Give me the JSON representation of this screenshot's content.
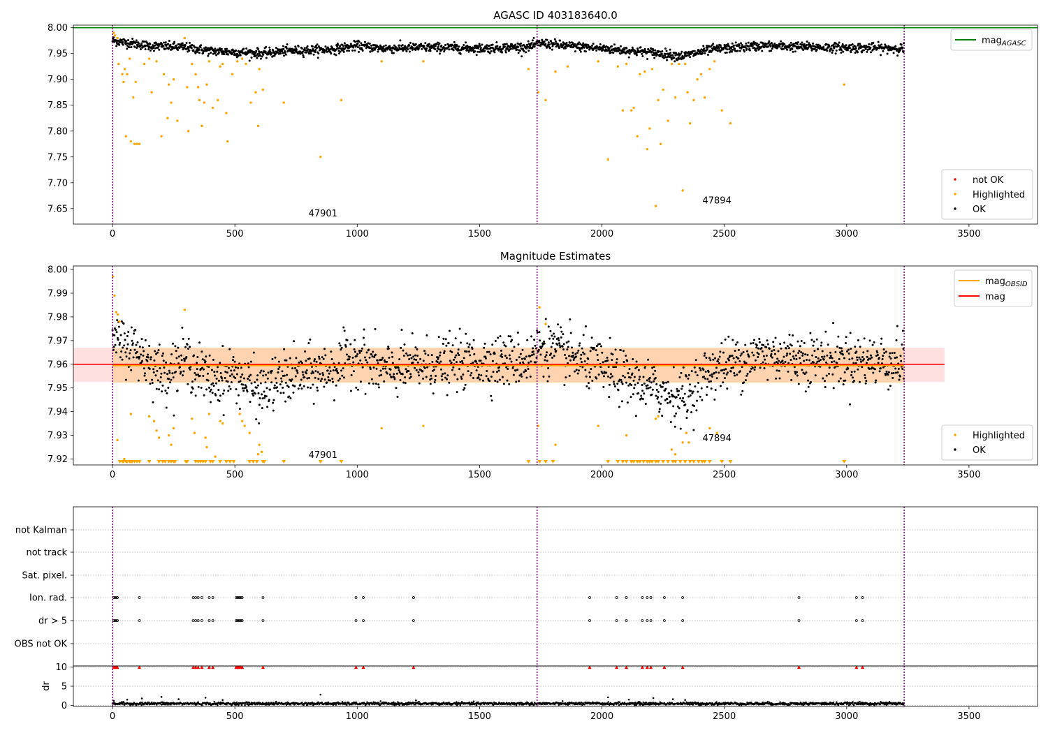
{
  "chart_data": [
    {
      "type": "scatter",
      "title": "AGASC ID 403183640.0",
      "xlim": [
        -160,
        3780
      ],
      "ylim": [
        7.62,
        8.005
      ],
      "x_ticks": [
        0,
        500,
        1000,
        1500,
        2000,
        2500,
        3000,
        3500
      ],
      "y_ticks": [
        7.65,
        7.7,
        7.75,
        7.8,
        7.85,
        7.9,
        7.95,
        8.0
      ],
      "reference_line": {
        "name": "mag",
        "subscript": "AGASC",
        "value": 8.0,
        "color": "#008000"
      },
      "obsid_boundaries": [
        0,
        1735,
        3235
      ],
      "annotations": [
        {
          "text": "47901",
          "x": 860,
          "y": 7.635
        },
        {
          "text": "47894",
          "x": 2470,
          "y": 7.66
        }
      ],
      "legend_lines": [
        {
          "name": "mag",
          "subscript": "AGASC",
          "color": "#008000"
        }
      ],
      "legend_points": [
        {
          "name": "not OK",
          "color": "#ff0000"
        },
        {
          "name": "Highlighted",
          "color": "#ffa500"
        },
        {
          "name": "OK",
          "color": "#000000"
        }
      ],
      "series_ok": {
        "color": "#000000",
        "segments": [
          {
            "x": 0,
            "y": 7.975
          },
          {
            "x": 150,
            "y": 7.965
          },
          {
            "x": 300,
            "y": 7.962
          },
          {
            "x": 400,
            "y": 7.955
          },
          {
            "x": 550,
            "y": 7.952
          },
          {
            "x": 620,
            "y": 7.95
          },
          {
            "x": 700,
            "y": 7.955
          },
          {
            "x": 900,
            "y": 7.958
          },
          {
            "x": 1000,
            "y": 7.965
          },
          {
            "x": 1100,
            "y": 7.96
          },
          {
            "x": 1300,
            "y": 7.962
          },
          {
            "x": 1500,
            "y": 7.96
          },
          {
            "x": 1700,
            "y": 7.963
          },
          {
            "x": 1750,
            "y": 7.97
          },
          {
            "x": 1850,
            "y": 7.965
          },
          {
            "x": 2000,
            "y": 7.96
          },
          {
            "x": 2200,
            "y": 7.952
          },
          {
            "x": 2330,
            "y": 7.945
          },
          {
            "x": 2450,
            "y": 7.958
          },
          {
            "x": 2650,
            "y": 7.965
          },
          {
            "x": 2900,
            "y": 7.962
          },
          {
            "x": 3235,
            "y": 7.96
          }
        ]
      },
      "series_highlighted": {
        "color": "#ffa500",
        "points": [
          [
            5,
            7.99
          ],
          [
            10,
            7.985
          ],
          [
            20,
            7.98
          ],
          [
            25,
            7.93
          ],
          [
            40,
            7.91
          ],
          [
            45,
            7.895
          ],
          [
            50,
            7.92
          ],
          [
            55,
            7.79
          ],
          [
            60,
            7.91
          ],
          [
            70,
            7.94
          ],
          [
            75,
            7.78
          ],
          [
            85,
            7.865
          ],
          [
            90,
            7.775
          ],
          [
            95,
            7.895
          ],
          [
            100,
            7.775
          ],
          [
            110,
            7.775
          ],
          [
            130,
            7.93
          ],
          [
            150,
            7.94
          ],
          [
            160,
            7.875
          ],
          [
            180,
            7.935
          ],
          [
            200,
            7.79
          ],
          [
            210,
            7.91
          ],
          [
            225,
            7.825
          ],
          [
            230,
            7.89
          ],
          [
            240,
            7.855
          ],
          [
            250,
            7.9
          ],
          [
            265,
            7.82
          ],
          [
            295,
            7.98
          ],
          [
            305,
            7.885
          ],
          [
            310,
            7.8
          ],
          [
            325,
            7.93
          ],
          [
            340,
            7.91
          ],
          [
            350,
            7.885
          ],
          [
            355,
            7.86
          ],
          [
            365,
            7.81
          ],
          [
            375,
            7.855
          ],
          [
            385,
            7.89
          ],
          [
            395,
            7.935
          ],
          [
            410,
            7.845
          ],
          [
            430,
            7.86
          ],
          [
            440,
            7.925
          ],
          [
            450,
            7.93
          ],
          [
            465,
            7.835
          ],
          [
            470,
            7.78
          ],
          [
            490,
            7.91
          ],
          [
            510,
            7.935
          ],
          [
            530,
            7.94
          ],
          [
            545,
            7.93
          ],
          [
            565,
            7.855
          ],
          [
            585,
            7.875
          ],
          [
            595,
            7.81
          ],
          [
            600,
            7.92
          ],
          [
            615,
            7.88
          ],
          [
            700,
            7.855
          ],
          [
            850,
            7.75
          ],
          [
            935,
            7.86
          ],
          [
            1100,
            7.935
          ],
          [
            1270,
            7.935
          ],
          [
            1700,
            7.92
          ],
          [
            1740,
            7.875
          ],
          [
            1770,
            7.86
          ],
          [
            1810,
            7.915
          ],
          [
            1860,
            7.925
          ],
          [
            1985,
            7.935
          ],
          [
            2025,
            7.745
          ],
          [
            2065,
            7.925
          ],
          [
            2085,
            7.84
          ],
          [
            2100,
            7.93
          ],
          [
            2120,
            7.84
          ],
          [
            2130,
            7.845
          ],
          [
            2145,
            7.79
          ],
          [
            2155,
            7.91
          ],
          [
            2175,
            7.915
          ],
          [
            2185,
            7.765
          ],
          [
            2195,
            7.805
          ],
          [
            2205,
            7.92
          ],
          [
            2220,
            7.655
          ],
          [
            2230,
            7.86
          ],
          [
            2240,
            7.775
          ],
          [
            2250,
            7.88
          ],
          [
            2270,
            7.82
          ],
          [
            2285,
            7.93
          ],
          [
            2300,
            7.865
          ],
          [
            2315,
            7.93
          ],
          [
            2330,
            7.685
          ],
          [
            2340,
            7.93
          ],
          [
            2350,
            7.875
          ],
          [
            2360,
            7.815
          ],
          [
            2375,
            7.86
          ],
          [
            2390,
            7.9
          ],
          [
            2405,
            7.91
          ],
          [
            2420,
            7.865
          ],
          [
            2440,
            7.92
          ],
          [
            2460,
            7.935
          ],
          [
            2490,
            7.84
          ],
          [
            2525,
            7.815
          ],
          [
            2990,
            7.89
          ]
        ]
      }
    },
    {
      "type": "scatter",
      "title": "Magnitude Estimates",
      "xlim": [
        -160,
        3780
      ],
      "ylim": [
        7.9175,
        8.0015
      ],
      "x_ticks": [
        0,
        500,
        1000,
        1500,
        2000,
        2500,
        3000,
        3500
      ],
      "y_ticks": [
        7.92,
        7.93,
        7.94,
        7.95,
        7.96,
        7.97,
        7.98,
        7.99,
        8.0
      ],
      "mag_line": {
        "name": "mag",
        "value": 7.96,
        "color": "#ff0000",
        "band": [
          7.9525,
          7.967
        ],
        "band_x": [
          -160,
          3400
        ]
      },
      "obsid_segments": [
        {
          "x0": 0,
          "x1": 1735,
          "value": 7.9595,
          "band": [
            7.952,
            7.967
          ]
        },
        {
          "x0": 1735,
          "x1": 3235,
          "value": 7.9595,
          "band": [
            7.952,
            7.967
          ]
        }
      ],
      "obsid_boundaries": [
        0,
        1735,
        3235
      ],
      "annotations": [
        {
          "text": "47901",
          "x": 860,
          "y": 7.9205
        },
        {
          "text": "47894",
          "x": 2470,
          "y": 7.9275
        }
      ],
      "legend_lines": [
        {
          "name": "mag",
          "subscript": "OBSID",
          "color": "#ffa500"
        },
        {
          "name": "mag",
          "subscript": "",
          "color": "#ff0000"
        }
      ],
      "legend_points": [
        {
          "name": "Highlighted",
          "color": "#ffa500"
        },
        {
          "name": "OK",
          "color": "#000000"
        }
      ],
      "series_ok": {
        "color": "#000000",
        "segments": [
          {
            "x": 0,
            "y": 7.97
          },
          {
            "x": 100,
            "y": 7.966
          },
          {
            "x": 200,
            "y": 7.956
          },
          {
            "x": 300,
            "y": 7.962
          },
          {
            "x": 400,
            "y": 7.953
          },
          {
            "x": 500,
            "y": 7.956
          },
          {
            "x": 600,
            "y": 7.948
          },
          {
            "x": 700,
            "y": 7.954
          },
          {
            "x": 900,
            "y": 7.958
          },
          {
            "x": 1000,
            "y": 7.964
          },
          {
            "x": 1100,
            "y": 7.957
          },
          {
            "x": 1300,
            "y": 7.96
          },
          {
            "x": 1500,
            "y": 7.961
          },
          {
            "x": 1700,
            "y": 7.962
          },
          {
            "x": 1750,
            "y": 7.968
          },
          {
            "x": 1850,
            "y": 7.964
          },
          {
            "x": 2000,
            "y": 7.958
          },
          {
            "x": 2200,
            "y": 7.95
          },
          {
            "x": 2330,
            "y": 7.946
          },
          {
            "x": 2450,
            "y": 7.958
          },
          {
            "x": 2650,
            "y": 7.964
          },
          {
            "x": 2900,
            "y": 7.962
          },
          {
            "x": 3235,
            "y": 7.961
          }
        ]
      },
      "series_highlighted": {
        "color": "#ffa500",
        "points": [
          [
            2,
            7.997
          ],
          [
            8,
            7.989
          ],
          [
            15,
            7.982
          ],
          [
            22,
            7.981
          ],
          [
            28,
            7.978
          ],
          [
            20,
            7.928
          ],
          [
            48,
            7.92
          ],
          [
            75,
            7.939
          ],
          [
            150,
            7.938
          ],
          [
            170,
            7.936
          ],
          [
            180,
            7.932
          ],
          [
            190,
            7.929
          ],
          [
            230,
            7.93
          ],
          [
            240,
            7.926
          ],
          [
            250,
            7.933
          ],
          [
            295,
            7.983
          ],
          [
            325,
            7.937
          ],
          [
            335,
            7.931
          ],
          [
            380,
            7.929
          ],
          [
            385,
            7.925
          ],
          [
            395,
            7.939
          ],
          [
            420,
            7.921
          ],
          [
            440,
            7.936
          ],
          [
            450,
            7.935
          ],
          [
            520,
            7.939
          ],
          [
            530,
            7.936
          ],
          [
            540,
            7.934
          ],
          [
            560,
            7.931
          ],
          [
            595,
            7.922
          ],
          [
            600,
            7.926
          ],
          [
            610,
            7.923
          ],
          [
            1100,
            7.933
          ],
          [
            1270,
            7.934
          ],
          [
            1740,
            7.934
          ],
          [
            1745,
            7.984
          ],
          [
            1770,
            7.977
          ],
          [
            1810,
            7.926
          ],
          [
            1985,
            7.934
          ],
          [
            2100,
            7.93
          ],
          [
            2220,
            7.937
          ],
          [
            2230,
            7.938
          ],
          [
            2285,
            7.924
          ],
          [
            2300,
            7.922
          ],
          [
            2330,
            7.927
          ],
          [
            2345,
            7.931
          ],
          [
            2355,
            7.927
          ],
          [
            2440,
            7.933
          ],
          [
            2470,
            7.931
          ]
        ]
      },
      "floor_markers": {
        "color": "#ffa500",
        "x": [
          30,
          40,
          45,
          55,
          60,
          70,
          75,
          80,
          90,
          100,
          110,
          150,
          190,
          205,
          215,
          230,
          240,
          250,
          255,
          300,
          305,
          340,
          350,
          360,
          370,
          380,
          400,
          410,
          440,
          465,
          480,
          495,
          560,
          575,
          590,
          615,
          620,
          700,
          850,
          935,
          1700,
          1745,
          1770,
          1800,
          2025,
          2065,
          2085,
          2100,
          2120,
          2130,
          2145,
          2155,
          2170,
          2185,
          2195,
          2205,
          2220,
          2230,
          2250,
          2270,
          2290,
          2300,
          2320,
          2340,
          2360,
          2375,
          2395,
          2410,
          2420,
          2440,
          2490,
          2525,
          2990
        ]
      }
    },
    {
      "type": "event-strip",
      "xlim": [
        -160,
        3780
      ],
      "rows": [
        "not Kalman",
        "not track",
        "Sat. pixel.",
        "Ion. rad.",
        "dr > 5",
        "OBS not OK"
      ],
      "obsid_boundaries": [
        0,
        1735,
        3235
      ],
      "events": {
        "Ion. rad.": [
          5,
          10,
          15,
          20,
          110,
          330,
          340,
          350,
          365,
          395,
          410,
          505,
          510,
          515,
          520,
          525,
          530,
          615,
          995,
          1025,
          1230,
          1950,
          2060,
          2100,
          2165,
          2185,
          2200,
          2255,
          2330,
          2805,
          3040,
          3065
        ],
        "dr > 5": [
          5,
          10,
          15,
          20,
          110,
          330,
          340,
          350,
          365,
          395,
          410,
          505,
          510,
          515,
          520,
          525,
          530,
          615,
          995,
          1025,
          1230,
          1950,
          2060,
          2100,
          2165,
          2185,
          2200,
          2255,
          2330,
          2805,
          3040,
          3065
        ]
      }
    },
    {
      "type": "scatter",
      "ylabel": "dr",
      "xlim": [
        -160,
        3780
      ],
      "ylim": [
        -0.3,
        10.3
      ],
      "x_ticks": [
        0,
        500,
        1000,
        1500,
        2000,
        2500,
        3000,
        3500
      ],
      "y_ticks": [
        0,
        5,
        10
      ],
      "obsid_boundaries": [
        0,
        1735,
        3235
      ],
      "clipped_markers": {
        "color": "#ff0000",
        "x": [
          5,
          10,
          15,
          20,
          110,
          330,
          340,
          350,
          365,
          395,
          410,
          505,
          510,
          515,
          520,
          525,
          530,
          615,
          995,
          1025,
          1230,
          1950,
          2060,
          2100,
          2165,
          2185,
          2200,
          2255,
          2330,
          2805,
          3040,
          3065
        ]
      },
      "series": {
        "color": "#000000",
        "typical": 0.45,
        "outliers": [
          [
            5,
            1.2
          ],
          [
            60,
            1.5
          ],
          [
            120,
            1.8
          ],
          [
            200,
            2.2
          ],
          [
            270,
            1.6
          ],
          [
            380,
            2.0
          ],
          [
            450,
            1.4
          ],
          [
            850,
            2.8
          ],
          [
            1240,
            1.3
          ],
          [
            2025,
            2.1
          ],
          [
            2110,
            1.5
          ],
          [
            2210,
            1.9
          ],
          [
            2290,
            1.6
          ],
          [
            2340,
            1.4
          ]
        ]
      }
    }
  ]
}
